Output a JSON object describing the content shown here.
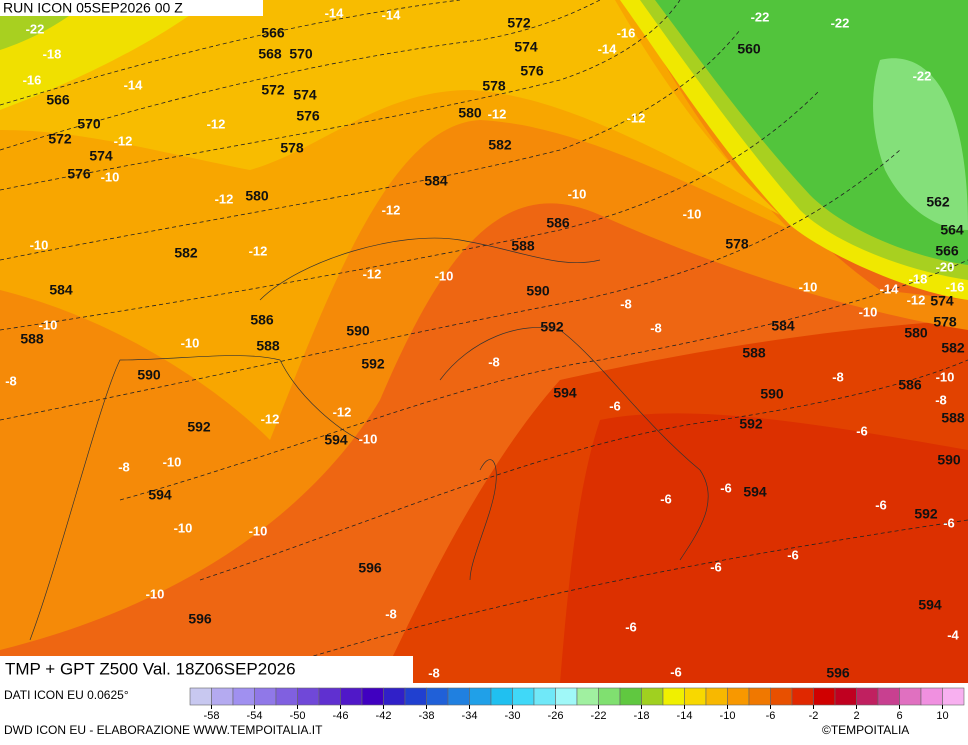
{
  "header": {
    "run": "RUN ICON 05SEP2026 00 Z"
  },
  "map": {
    "geopotential_labels": [
      566,
      570,
      572,
      574,
      576,
      566,
      568,
      570,
      572,
      574,
      576,
      578,
      572,
      574,
      576,
      578,
      580,
      582,
      584,
      580,
      582,
      584,
      588,
      586,
      588,
      590,
      592,
      590,
      592,
      594,
      594,
      596,
      596,
      586,
      588,
      590,
      592,
      594,
      578,
      560,
      562,
      564,
      566,
      574,
      578,
      580,
      582,
      584,
      588,
      586,
      590,
      592,
      588,
      590,
      592,
      594,
      594,
      596
    ],
    "temperature_labels": [
      -14,
      -14,
      -22,
      -18,
      -16,
      -14,
      -12,
      -12,
      -10,
      -12,
      -10,
      -12,
      -12,
      -10,
      -12,
      -10,
      -10,
      -8,
      -12,
      -12,
      -10,
      -8,
      -10,
      -10,
      -10,
      -10,
      -8,
      -8,
      -8,
      -8,
      -8,
      -10,
      -10,
      -12,
      -12,
      -14,
      -16,
      -22,
      -22,
      -22,
      -20,
      -18,
      -16,
      -14,
      -12,
      -10,
      -10,
      -8,
      -10,
      -8,
      -6,
      -6,
      -6,
      -6,
      -6,
      -6,
      -6,
      -6,
      -6,
      -6,
      -4
    ]
  },
  "footer": {
    "title": "TMP + GPT Z500 Val. 18Z06SEP2026",
    "source": "DATI ICON EU 0.0625°",
    "credit": "DWD ICON EU - ELABORAZIONE WWW.TEMPOITALIA.IT",
    "brand": "©TEMPOITALIA"
  },
  "colorbar": {
    "ticks": [
      -58,
      -54,
      -50,
      -46,
      -42,
      -38,
      -34,
      -30,
      -26,
      -22,
      -18,
      -14,
      -10,
      -6,
      -2,
      2,
      6,
      10
    ],
    "range": [
      -60,
      12
    ],
    "colors": [
      "#c8c8f0",
      "#b4aaf0",
      "#a090f0",
      "#9078e8",
      "#8060e0",
      "#7048d8",
      "#6030d0",
      "#5018c8",
      "#4000c0",
      "#3020c8",
      "#2040d0",
      "#2060d8",
      "#2080e0",
      "#20a0e8",
      "#20c0f0",
      "#40d8f8",
      "#70e8f8",
      "#a0f8f8",
      "#a0f0a0",
      "#80e070",
      "#60c840",
      "#a0d020",
      "#f0f000",
      "#f8d800",
      "#f8b800",
      "#f89800",
      "#f07800",
      "#e85000",
      "#e02800",
      "#d00000",
      "#c00020",
      "#c02060",
      "#c84090",
      "#e070c0",
      "#f090e0",
      "#f8b0f0"
    ]
  }
}
